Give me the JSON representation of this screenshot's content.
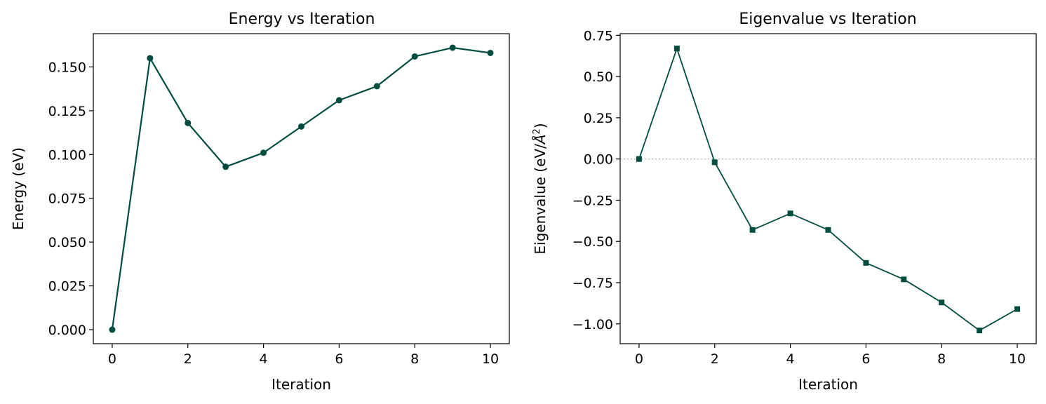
{
  "colors": {
    "series": "#004d40",
    "axis": "#000000",
    "zero_line": "#aaaaaa",
    "background": "#ffffff"
  },
  "chart_data": [
    {
      "type": "line",
      "title": "Energy vs Iteration",
      "xlabel": "Iteration",
      "ylabel": "Energy (eV)",
      "marker": "circle",
      "x": [
        0,
        1,
        2,
        3,
        4,
        5,
        6,
        7,
        8,
        9,
        10
      ],
      "values": [
        0.0,
        0.155,
        0.118,
        0.093,
        0.101,
        0.116,
        0.131,
        0.139,
        0.156,
        0.161,
        0.158
      ],
      "xlim": [
        -0.5,
        10.5
      ],
      "ylim": [
        -0.008,
        0.169
      ],
      "xticks": [
        0,
        2,
        4,
        6,
        8,
        10
      ],
      "xtick_labels": [
        "0",
        "2",
        "4",
        "6",
        "8",
        "10"
      ],
      "yticks": [
        0.0,
        0.025,
        0.05,
        0.075,
        0.1,
        0.125,
        0.15
      ],
      "ytick_labels": [
        "0.000",
        "0.025",
        "0.050",
        "0.075",
        "0.100",
        "0.125",
        "0.150"
      ],
      "grid": false,
      "zero_line": false
    },
    {
      "type": "line",
      "title": "Eigenvalue vs Iteration",
      "xlabel": "Iteration",
      "ylabel_main": "Eigenvalue (eV/",
      "ylabel_unit": "Å",
      "ylabel_exp": "2",
      "ylabel_close": ")",
      "marker": "square",
      "x": [
        0,
        1,
        2,
        3,
        4,
        5,
        6,
        7,
        8,
        9,
        10
      ],
      "values": [
        0.0,
        0.67,
        -0.02,
        -0.43,
        -0.33,
        -0.43,
        -0.63,
        -0.73,
        -0.87,
        -1.04,
        -0.91
      ],
      "xlim": [
        -0.5,
        10.5
      ],
      "ylim": [
        -1.12,
        0.76
      ],
      "xticks": [
        0,
        2,
        4,
        6,
        8,
        10
      ],
      "xtick_labels": [
        "0",
        "2",
        "4",
        "6",
        "8",
        "10"
      ],
      "yticks": [
        -1.0,
        -0.75,
        -0.5,
        -0.25,
        0.0,
        0.25,
        0.5,
        0.75
      ],
      "ytick_labels": [
        "−1.00",
        "−0.75",
        "−0.50",
        "−0.25",
        "0.00",
        "0.25",
        "0.50",
        "0.75"
      ],
      "grid": false,
      "zero_line": true
    }
  ]
}
